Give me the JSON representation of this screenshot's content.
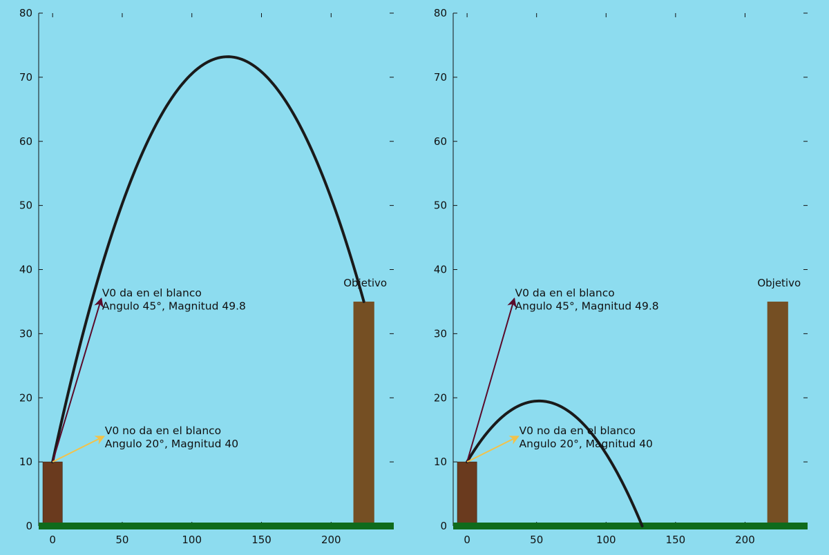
{
  "theme": {
    "background": "#8ddcef",
    "ground": "#0f6b1c",
    "launch_tower": "#6a3a1e",
    "target_tower": "#754f23",
    "trajectory": "#1a1a1a",
    "hit_arrow": "#5a0b2a",
    "miss_arrow": "#f2c24a"
  },
  "chart_data": [
    {
      "type": "line",
      "title": "",
      "xlabel": "",
      "ylabel": "",
      "xlim": [
        -10,
        245
      ],
      "ylim": [
        0,
        80
      ],
      "x_ticks": [
        0,
        50,
        100,
        150,
        200
      ],
      "y_ticks": [
        0,
        10,
        20,
        30,
        40,
        50,
        60,
        70,
        80
      ],
      "grid": false,
      "launch_tower": {
        "x0": -7,
        "x1": 7,
        "height": 10
      },
      "target_tower": {
        "x0": 216,
        "x1": 231,
        "height": 35,
        "label": "Objetivo"
      },
      "launch_point": [
        0,
        10
      ],
      "trajectory": {
        "vertex": [
          126,
          73.2
        ],
        "end": [
          223.5,
          35
        ],
        "fit_points": [
          [
            0,
            10
          ],
          [
            126,
            73.2
          ],
          [
            223.5,
            35
          ]
        ]
      },
      "vectors": [
        {
          "to": [
            35,
            35.5
          ],
          "line1": "V0 da en el blanco",
          "line2": "Angulo 45°, Magnitud 49.8",
          "role": "hit"
        },
        {
          "to": [
            37,
            14
          ],
          "line1": "V0 no da en el blanco",
          "line2": "Angulo 20°, Magnitud 40",
          "role": "miss"
        }
      ]
    },
    {
      "type": "line",
      "title": "",
      "xlabel": "",
      "ylabel": "",
      "xlim": [
        -10,
        245
      ],
      "ylim": [
        0,
        80
      ],
      "x_ticks": [
        0,
        50,
        100,
        150,
        200
      ],
      "y_ticks": [
        0,
        10,
        20,
        30,
        40,
        50,
        60,
        70,
        80
      ],
      "grid": false,
      "launch_tower": {
        "x0": -7,
        "x1": 7,
        "height": 10
      },
      "target_tower": {
        "x0": 216,
        "x1": 231,
        "height": 35,
        "label": "Objetivo"
      },
      "launch_point": [
        0,
        10
      ],
      "trajectory": {
        "vertex": [
          51,
          19.5
        ],
        "end": [
          126,
          0
        ],
        "fit_points": [
          [
            0,
            10
          ],
          [
            51,
            19.5
          ],
          [
            126,
            0
          ]
        ]
      },
      "vectors": [
        {
          "to": [
            34,
            35.5
          ],
          "line1": "V0 da en el blanco",
          "line2": "Angulo 45°, Magnitud 49.8",
          "role": "hit"
        },
        {
          "to": [
            37,
            14
          ],
          "line1": "V0 no da en el blanco",
          "line2": "Angulo 20°, Magnitud 40",
          "role": "miss"
        }
      ]
    }
  ]
}
